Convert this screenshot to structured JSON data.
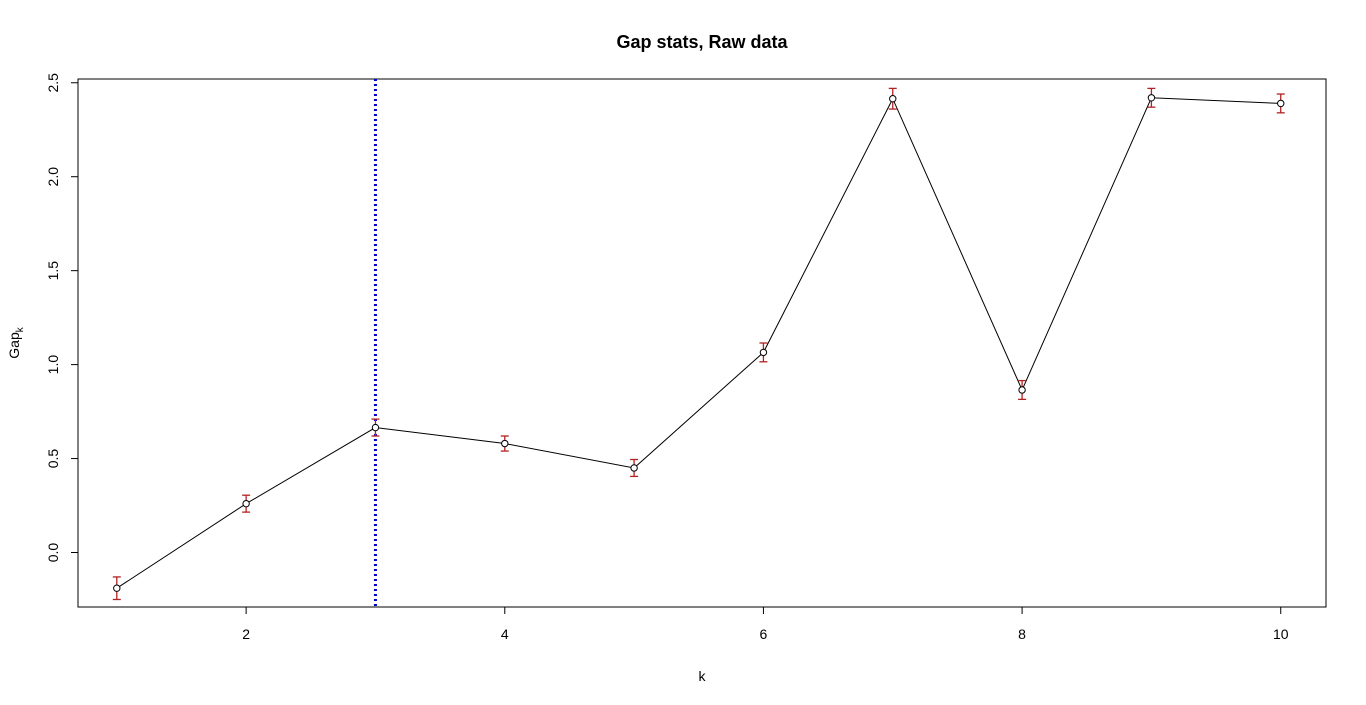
{
  "chart_data": {
    "type": "scatter",
    "title": "Gap stats, Raw data",
    "xlabel": "k",
    "ylabel": "Gap",
    "ylabel_subscript": "k",
    "xlim": [
      0.7,
      10.35
    ],
    "ylim": [
      -0.29,
      2.52
    ],
    "xticks": [
      2,
      4,
      6,
      8,
      10
    ],
    "xtick_labels": [
      "2",
      "4",
      "6",
      "8",
      "10"
    ],
    "yticks": [
      0.0,
      0.5,
      1.0,
      1.5,
      2.0,
      2.5
    ],
    "ytick_labels": [
      "0.0",
      "0.5",
      "1.0",
      "1.5",
      "2.0",
      "2.5"
    ],
    "grid": false,
    "series": [
      {
        "x": [
          1,
          2,
          3,
          4,
          5,
          6,
          7,
          8,
          9,
          10
        ],
        "values": [
          -0.19,
          0.26,
          0.665,
          0.58,
          0.45,
          1.065,
          2.415,
          0.865,
          2.42,
          2.39
        ],
        "error": [
          0.06,
          0.045,
          0.045,
          0.04,
          0.045,
          0.05,
          0.055,
          0.05,
          0.05,
          0.05
        ],
        "color": "#000000",
        "error_color": "#b22222"
      }
    ],
    "vline": {
      "x": 3,
      "color": "#0000cd",
      "style": "dotted"
    }
  }
}
